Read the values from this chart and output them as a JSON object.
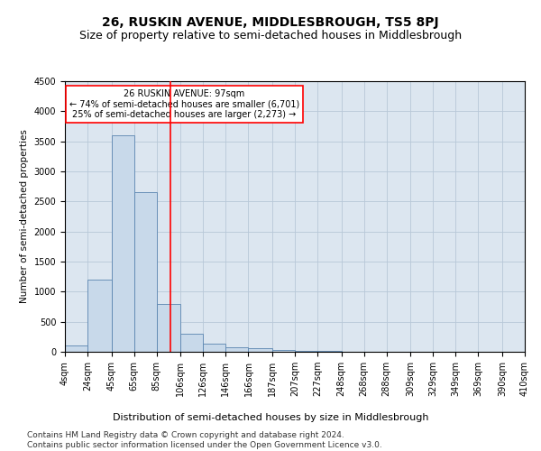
{
  "title": "26, RUSKIN AVENUE, MIDDLESBROUGH, TS5 8PJ",
  "subtitle": "Size of property relative to semi-detached houses in Middlesbrough",
  "xlabel": "Distribution of semi-detached houses by size in Middlesbrough",
  "ylabel": "Number of semi-detached properties",
  "footer_line1": "Contains HM Land Registry data © Crown copyright and database right 2024.",
  "footer_line2": "Contains public sector information licensed under the Open Government Licence v3.0.",
  "property_size": 97,
  "annotation_title": "26 RUSKIN AVENUE: 97sqm",
  "annotation_line2": "← 74% of semi-detached houses are smaller (6,701)",
  "annotation_line3": "25% of semi-detached houses are larger (2,273) →",
  "bin_edges": [
    4,
    24,
    45,
    65,
    85,
    106,
    126,
    146,
    166,
    187,
    207,
    227,
    248,
    268,
    288,
    309,
    329,
    349,
    369,
    390,
    410
  ],
  "bin_counts": [
    100,
    1200,
    3600,
    2650,
    800,
    300,
    140,
    80,
    60,
    30,
    20,
    10,
    5,
    3,
    2,
    1,
    1,
    1,
    0,
    0
  ],
  "bar_color": "#c8d9ea",
  "bar_edge_color": "#5a85b0",
  "vline_color": "red",
  "vline_x": 97,
  "annotation_box_color": "red",
  "ylim": [
    0,
    4500
  ],
  "yticks": [
    0,
    500,
    1000,
    1500,
    2000,
    2500,
    3000,
    3500,
    4000,
    4500
  ],
  "grid_color": "#b8c8d8",
  "background_color": "#dce6f0",
  "title_fontsize": 10,
  "subtitle_fontsize": 9,
  "axis_label_fontsize": 7.5,
  "tick_fontsize": 7,
  "annotation_fontsize": 7,
  "footer_fontsize": 6.5
}
